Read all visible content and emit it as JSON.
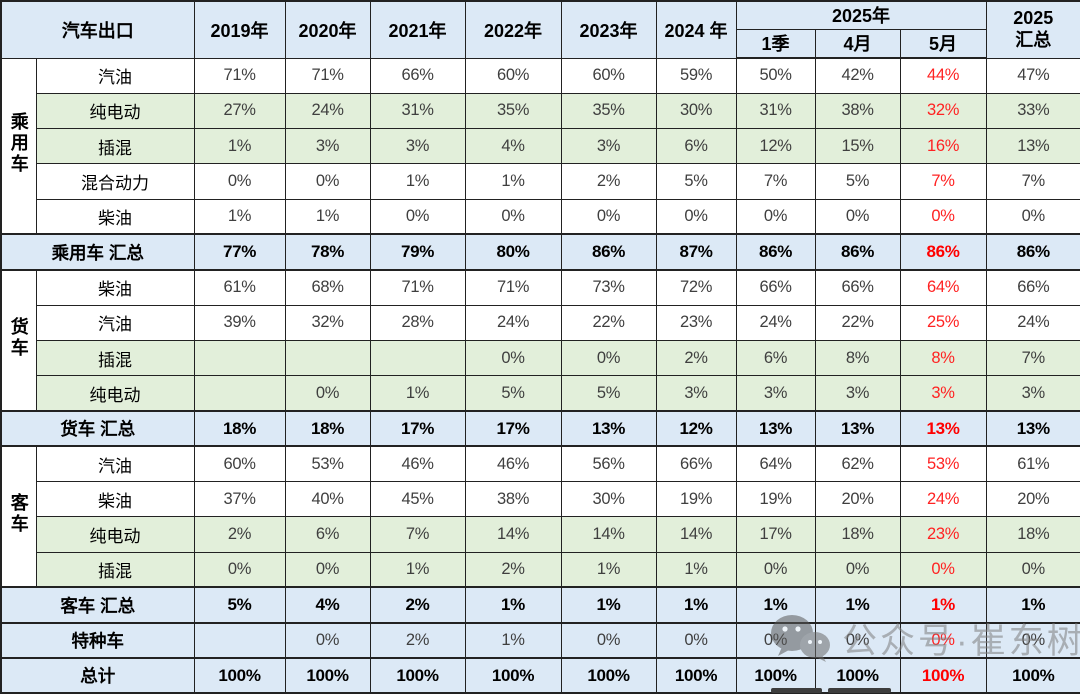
{
  "colors": {
    "header_bg": "#DCE9F6",
    "green_bg": "#E2EFDA",
    "red_text": "#FF2222",
    "value_text": "#3F3F3F",
    "border": "#222222"
  },
  "watermark": {
    "text": "公众号·崔东树",
    "icon": "wechat-icon"
  },
  "chart_data": {
    "type": "table",
    "title": "汽车出口",
    "header": {
      "flat_years": [
        "2019年",
        "2020年",
        "2021年",
        "2022年",
        "2023年",
        "2024 年"
      ],
      "year_2025": {
        "label": "2025年",
        "subs": [
          "1季",
          "4月",
          "5月"
        ]
      },
      "total_lines": [
        "2025",
        "汇总"
      ]
    },
    "red_column": "5月",
    "red_column_index": 8,
    "column_order": [
      "2019年",
      "2020年",
      "2021年",
      "2022年",
      "2023年",
      "2024 年",
      "2025年1季",
      "2025年4月",
      "2025年5月",
      "2025 汇总"
    ],
    "rows": [
      {
        "kind": "data",
        "group": "乘用车",
        "group_span": 5,
        "label": "汽油",
        "green": false,
        "values": [
          "71%",
          "71%",
          "66%",
          "60%",
          "60%",
          "59%",
          "50%",
          "42%",
          "44%",
          "47%"
        ]
      },
      {
        "kind": "data",
        "label": "纯电动",
        "green": true,
        "values": [
          "27%",
          "24%",
          "31%",
          "35%",
          "35%",
          "30%",
          "31%",
          "38%",
          "32%",
          "33%"
        ]
      },
      {
        "kind": "data",
        "label": "插混",
        "green": true,
        "values": [
          "1%",
          "3%",
          "3%",
          "4%",
          "3%",
          "6%",
          "12%",
          "15%",
          "16%",
          "13%"
        ]
      },
      {
        "kind": "data",
        "label": "混合动力",
        "green": false,
        "values": [
          "0%",
          "0%",
          "1%",
          "1%",
          "2%",
          "5%",
          "7%",
          "5%",
          "7%",
          "7%"
        ]
      },
      {
        "kind": "data",
        "label": "柴油",
        "green": false,
        "values": [
          "1%",
          "1%",
          "0%",
          "0%",
          "0%",
          "0%",
          "0%",
          "0%",
          "0%",
          "0%"
        ]
      },
      {
        "kind": "summary",
        "label": "乘用车 汇总",
        "bold_values": true,
        "values": [
          "77%",
          "78%",
          "79%",
          "80%",
          "86%",
          "87%",
          "86%",
          "86%",
          "86%",
          "86%"
        ]
      },
      {
        "kind": "data",
        "group": "货车",
        "group_span": 4,
        "label": "柴油",
        "green": false,
        "values": [
          "61%",
          "68%",
          "71%",
          "71%",
          "73%",
          "72%",
          "66%",
          "66%",
          "64%",
          "66%"
        ]
      },
      {
        "kind": "data",
        "label": "汽油",
        "green": false,
        "values": [
          "39%",
          "32%",
          "28%",
          "24%",
          "22%",
          "23%",
          "24%",
          "22%",
          "25%",
          "24%"
        ]
      },
      {
        "kind": "data",
        "label": "插混",
        "green": true,
        "values": [
          "",
          "",
          "",
          "0%",
          "0%",
          "2%",
          "6%",
          "8%",
          "8%",
          "7%"
        ]
      },
      {
        "kind": "data",
        "label": "纯电动",
        "green": true,
        "values": [
          "",
          "0%",
          "1%",
          "5%",
          "5%",
          "3%",
          "3%",
          "3%",
          "3%",
          "3%"
        ]
      },
      {
        "kind": "summary",
        "label": "货车 汇总",
        "bold_values": true,
        "values": [
          "18%",
          "18%",
          "17%",
          "17%",
          "13%",
          "12%",
          "13%",
          "13%",
          "13%",
          "13%"
        ]
      },
      {
        "kind": "data",
        "group": "客车",
        "group_span": 4,
        "label": "汽油",
        "green": false,
        "values": [
          "60%",
          "53%",
          "46%",
          "46%",
          "56%",
          "66%",
          "64%",
          "62%",
          "53%",
          "61%"
        ]
      },
      {
        "kind": "data",
        "label": "柴油",
        "green": false,
        "values": [
          "37%",
          "40%",
          "45%",
          "38%",
          "30%",
          "19%",
          "19%",
          "20%",
          "24%",
          "20%"
        ]
      },
      {
        "kind": "data",
        "label": "纯电动",
        "green": true,
        "values": [
          "2%",
          "6%",
          "7%",
          "14%",
          "14%",
          "14%",
          "17%",
          "18%",
          "23%",
          "18%"
        ]
      },
      {
        "kind": "data",
        "label": "插混",
        "green": true,
        "values": [
          "0%",
          "0%",
          "1%",
          "2%",
          "1%",
          "1%",
          "0%",
          "0%",
          "0%",
          "0%"
        ]
      },
      {
        "kind": "summary",
        "label": "客车 汇总",
        "bold_values": true,
        "values": [
          "5%",
          "4%",
          "2%",
          "1%",
          "1%",
          "1%",
          "1%",
          "1%",
          "1%",
          "1%"
        ]
      },
      {
        "kind": "summary",
        "label": "特种车",
        "bold_values": false,
        "values": [
          "",
          "0%",
          "2%",
          "1%",
          "0%",
          "0%",
          "0%",
          "0%",
          "0%",
          "0%"
        ]
      },
      {
        "kind": "summary",
        "label": "总计",
        "bold_values": true,
        "values": [
          "100%",
          "100%",
          "100%",
          "100%",
          "100%",
          "100%",
          "100%",
          "100%",
          "100%",
          "100%"
        ]
      }
    ]
  }
}
